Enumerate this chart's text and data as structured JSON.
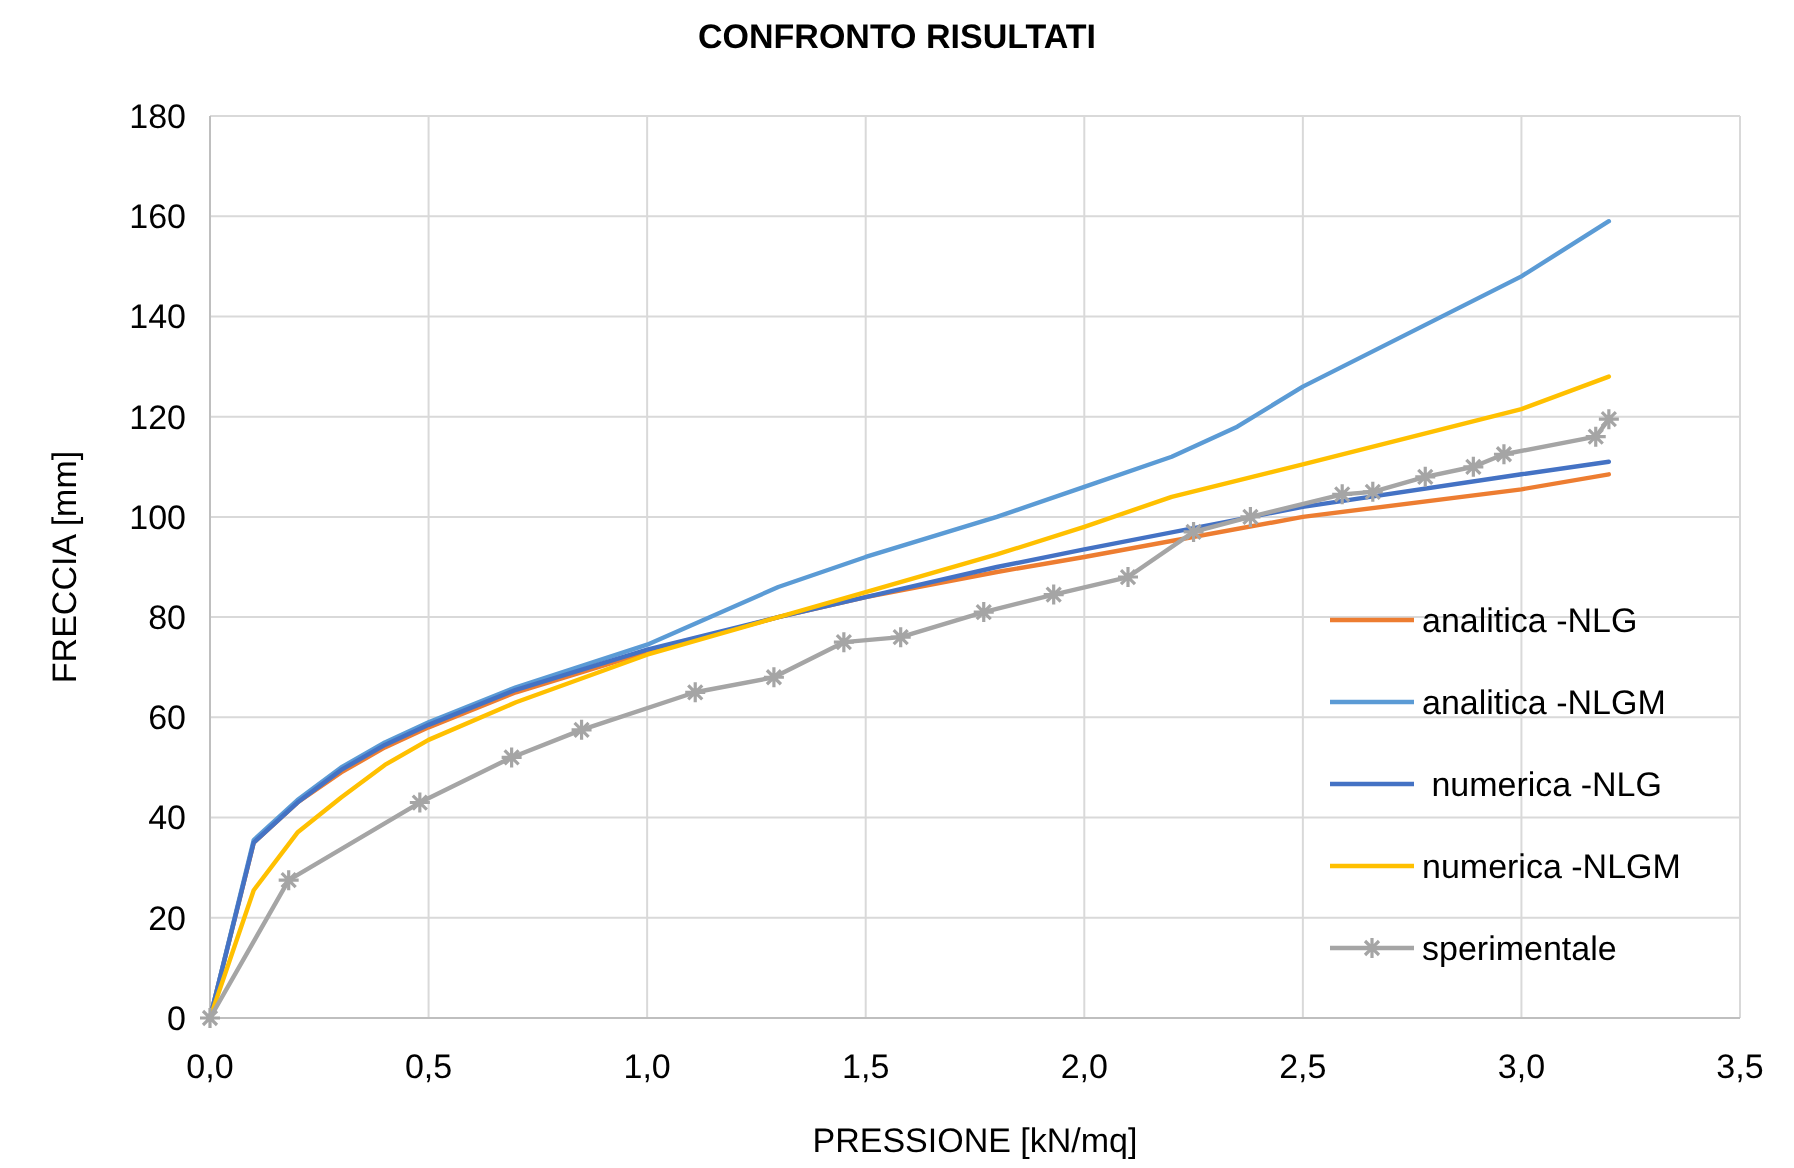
{
  "chart_data": {
    "type": "line",
    "title": "CONFRONTO RISULTATI",
    "xlabel": "PRESSIONE [kN/mq]",
    "ylabel": "FRECCIA [mm]",
    "xlim": [
      0,
      3.5
    ],
    "xticks": [
      {
        "value": 0,
        "label": "0,0"
      },
      {
        "value": 0.5,
        "label": "0,5"
      },
      {
        "value": 1,
        "label": "1,0"
      },
      {
        "value": 1.5,
        "label": "1,5"
      },
      {
        "value": 2,
        "label": "2,0"
      },
      {
        "value": 2.5,
        "label": "2,5"
      },
      {
        "value": 3,
        "label": "3,0"
      },
      {
        "value": 3.5,
        "label": "3,5"
      }
    ],
    "ylim": [
      0,
      180
    ],
    "yticks": [
      0,
      20,
      40,
      60,
      80,
      100,
      120,
      140,
      160,
      180
    ],
    "grid": true,
    "legend": "right",
    "series": [
      {
        "name": "analitica -NLG",
        "color": "#ed7d31",
        "marker": "none",
        "x": [
          0,
          0.1,
          0.2,
          0.3,
          0.4,
          0.5,
          0.7,
          1.0,
          1.3,
          1.5,
          1.8,
          2.0,
          2.5,
          3.0,
          3.2
        ],
        "values": [
          0,
          35,
          43,
          49,
          54,
          58,
          65,
          73,
          80,
          84,
          89,
          92,
          100,
          105.5,
          108.5
        ]
      },
      {
        "name": "analitica -NLGM",
        "color": "#5b9bd5",
        "marker": "none",
        "x": [
          0,
          0.1,
          0.2,
          0.3,
          0.4,
          0.5,
          0.7,
          1.0,
          1.3,
          1.5,
          1.8,
          2.0,
          2.2,
          2.35,
          2.5,
          3.0,
          3.2
        ],
        "values": [
          0,
          35.5,
          43.5,
          50,
          55,
          59,
          66,
          74.5,
          86,
          92,
          100,
          106,
          112,
          118,
          126,
          148,
          159
        ]
      },
      {
        "name": " numerica -NLG",
        "color": "#4472c4",
        "marker": "none",
        "x": [
          0,
          0.1,
          0.2,
          0.3,
          0.4,
          0.5,
          0.7,
          1.0,
          1.3,
          1.5,
          1.8,
          2.0,
          2.5,
          3.0,
          3.2
        ],
        "values": [
          0,
          35,
          43,
          49.5,
          54.5,
          58.5,
          65.5,
          73.5,
          80,
          84,
          90,
          93.5,
          102,
          108.5,
          111
        ]
      },
      {
        "name": "numerica -NLGM",
        "color": "#ffc000",
        "marker": "none",
        "x": [
          0,
          0.1,
          0.2,
          0.3,
          0.4,
          0.5,
          0.7,
          1.0,
          1.3,
          1.5,
          1.8,
          2.0,
          2.2,
          2.5,
          3.0,
          3.2
        ],
        "values": [
          0,
          25.5,
          37,
          44,
          50.5,
          55.5,
          63,
          72.5,
          80,
          85,
          92.5,
          98,
          104,
          110.5,
          121.5,
          128
        ]
      },
      {
        "name": "sperimentale",
        "color": "#a5a5a5",
        "marker": "cross",
        "x": [
          0,
          0.18,
          0.48,
          0.69,
          0.85,
          1.11,
          1.29,
          1.45,
          1.58,
          1.77,
          1.93,
          2.1,
          2.25,
          2.38,
          2.59,
          2.66,
          2.78,
          2.89,
          2.96,
          3.17,
          3.2
        ],
        "values": [
          0,
          27.5,
          43,
          52,
          57.5,
          65,
          68,
          75,
          76,
          81,
          84.5,
          88,
          97,
          100,
          104.5,
          105,
          108,
          110,
          112.5,
          116,
          119.5
        ]
      }
    ]
  }
}
